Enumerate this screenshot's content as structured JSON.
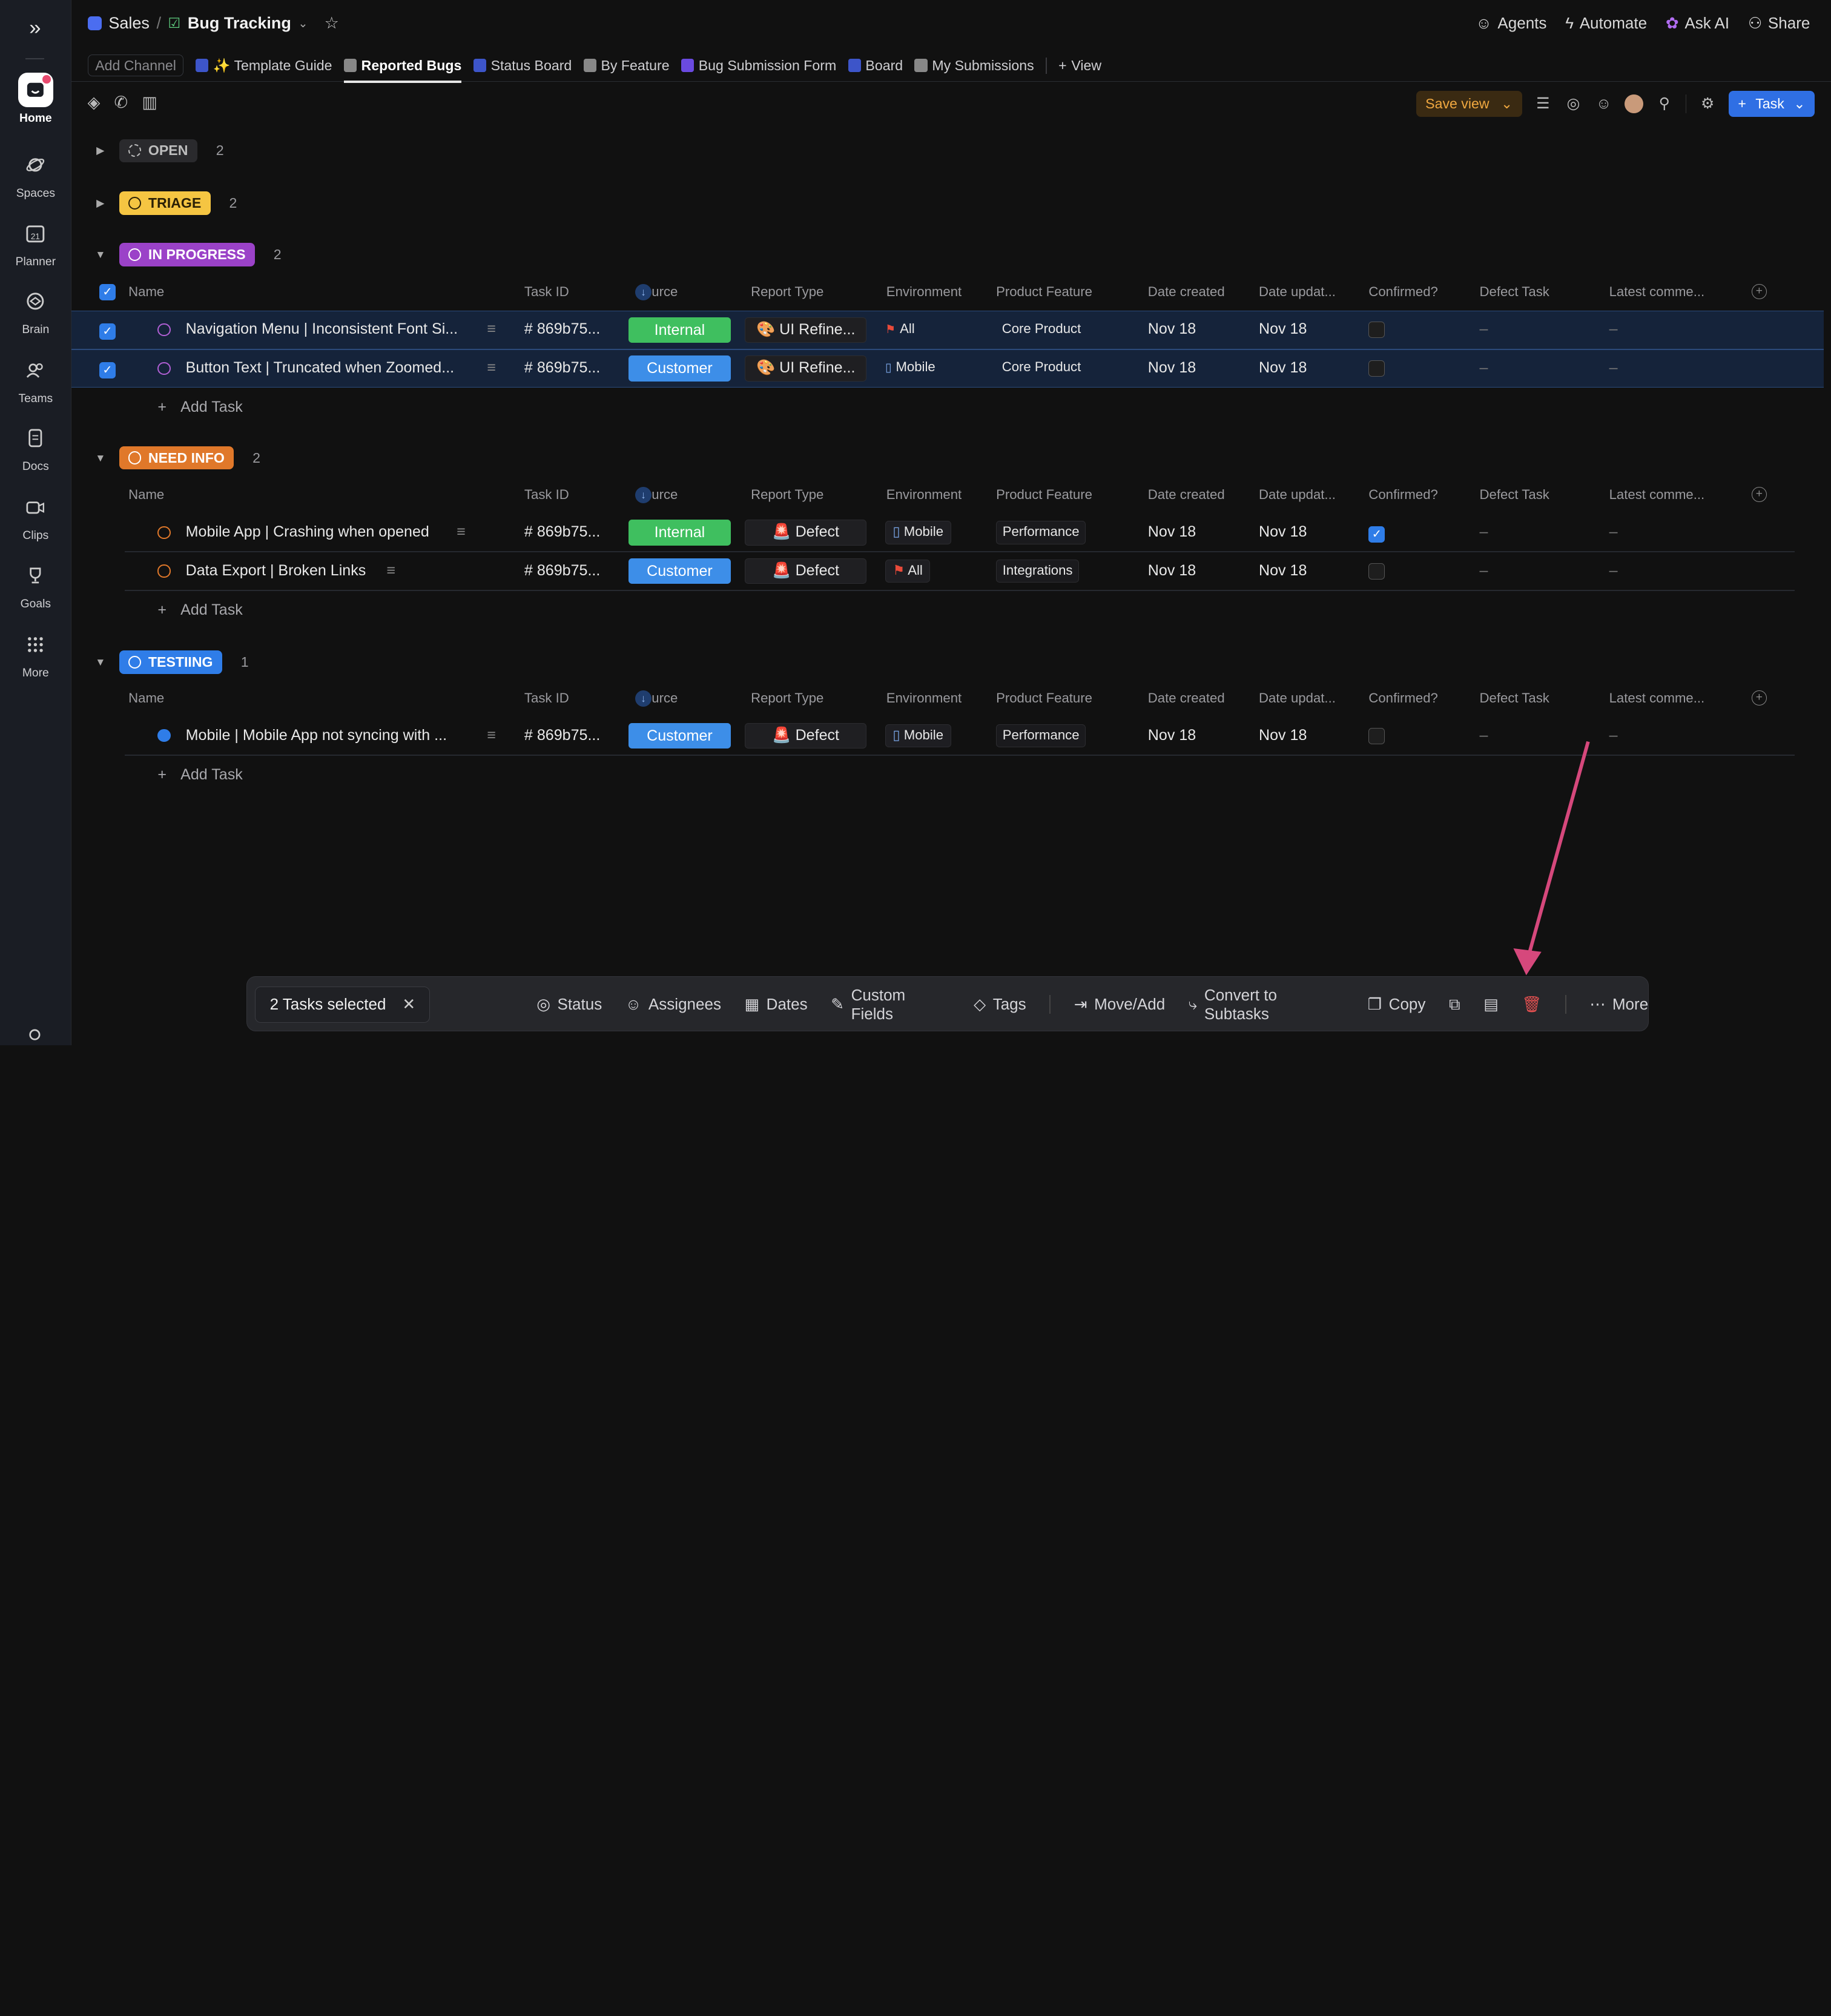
{
  "sidebar": {
    "items": [
      {
        "label": "Home",
        "icon": "home-icon"
      },
      {
        "label": "Spaces",
        "icon": "planet-icon"
      },
      {
        "label": "Planner",
        "icon": "calendar-icon",
        "badge": "21"
      },
      {
        "label": "Brain",
        "icon": "brain-icon"
      },
      {
        "label": "Teams",
        "icon": "teams-icon"
      },
      {
        "label": "Docs",
        "icon": "doc-icon"
      },
      {
        "label": "Clips",
        "icon": "video-icon"
      },
      {
        "label": "Goals",
        "icon": "trophy-icon"
      },
      {
        "label": "More",
        "icon": "grid-icon"
      }
    ]
  },
  "header": {
    "space": "Sales",
    "separator": "/",
    "list": "Bug Tracking",
    "actions": [
      "Agents",
      "Automate",
      "Ask AI",
      "Share"
    ]
  },
  "tabs": {
    "add_channel": "Add Channel",
    "items": [
      "✨ Template Guide",
      "Reported Bugs",
      "Status Board",
      "By Feature",
      "Bug Submission Form",
      "Board",
      "My Submissions"
    ],
    "add_view": "View"
  },
  "toolbar": {
    "save_view": "Save view",
    "task_button": "Task"
  },
  "columns": [
    "Name",
    "Task ID",
    "Source",
    "Report Type",
    "Environment",
    "Product Feature",
    "Date created",
    "Date updat...",
    "Confirmed?",
    "Defect Task",
    "Latest comme..."
  ],
  "groups": [
    {
      "status": "OPEN",
      "count": "2",
      "color": "#bdbdbd",
      "bg": "#2a2a2d",
      "tasks": []
    },
    {
      "status": "TRIAGE",
      "count": "2",
      "color": "#2b2005",
      "bg": "#f5c542",
      "tasks": []
    },
    {
      "status": "IN PROGRESS",
      "count": "2",
      "color": "#ffffff",
      "bg": "#9b42c8",
      "tasks": [
        {
          "name": "Navigation Menu | Inconsistent Font Si...",
          "id": "# 869b75...",
          "source": "Internal",
          "report_type": "🎨 UI Refine...",
          "env": "All",
          "feature": "Core Product",
          "created": "Nov 18",
          "updated": "Nov 18",
          "confirmed": false,
          "defect": "–",
          "comment": "–",
          "selected": true
        },
        {
          "name": "Button Text | Truncated when Zoomed...",
          "id": "# 869b75...",
          "source": "Customer",
          "report_type": "🎨 UI Refine...",
          "env": "Mobile",
          "feature": "Core Product",
          "created": "Nov 18",
          "updated": "Nov 18",
          "confirmed": false,
          "defect": "–",
          "comment": "–",
          "selected": true
        }
      ]
    },
    {
      "status": "NEED INFO",
      "count": "2",
      "color": "#ffffff",
      "bg": "#e0782a",
      "tasks": [
        {
          "name": "Mobile App | Crashing when opened",
          "id": "# 869b75...",
          "source": "Internal",
          "report_type": "🚨 Defect",
          "env": "Mobile",
          "feature": "Performance",
          "created": "Nov 18",
          "updated": "Nov 18",
          "confirmed": true,
          "defect": "–",
          "comment": "–",
          "selected": false
        },
        {
          "name": "Data Export | Broken Links",
          "id": "# 869b75...",
          "source": "Customer",
          "report_type": "🚨 Defect",
          "env": "All",
          "feature": "Integrations",
          "created": "Nov 18",
          "updated": "Nov 18",
          "confirmed": false,
          "defect": "–",
          "comment": "–",
          "selected": false
        }
      ]
    },
    {
      "status": "TESTIING",
      "count": "1",
      "color": "#ffffff",
      "bg": "#2f7de8",
      "tasks": [
        {
          "name": "Mobile | Mobile App not syncing with ...",
          "id": "# 869b75...",
          "source": "Customer",
          "report_type": "🚨 Defect",
          "env": "Mobile",
          "feature": "Performance",
          "created": "Nov 18",
          "updated": "Nov 18",
          "confirmed": false,
          "defect": "–",
          "comment": "–",
          "selected": false
        }
      ]
    }
  ],
  "add_task": "Add Task",
  "bulk": {
    "selected": "2 Tasks selected",
    "actions": [
      "Status",
      "Assignees",
      "Dates",
      "Custom Fields",
      "Tags",
      "Move/Add",
      "Convert to Subtasks",
      "Copy",
      "More"
    ]
  },
  "colors": {
    "internal": "#3fbf5f",
    "customer": "#3d8ee8",
    "accent": "#2f6fe4",
    "arrow": "#d6487c"
  }
}
